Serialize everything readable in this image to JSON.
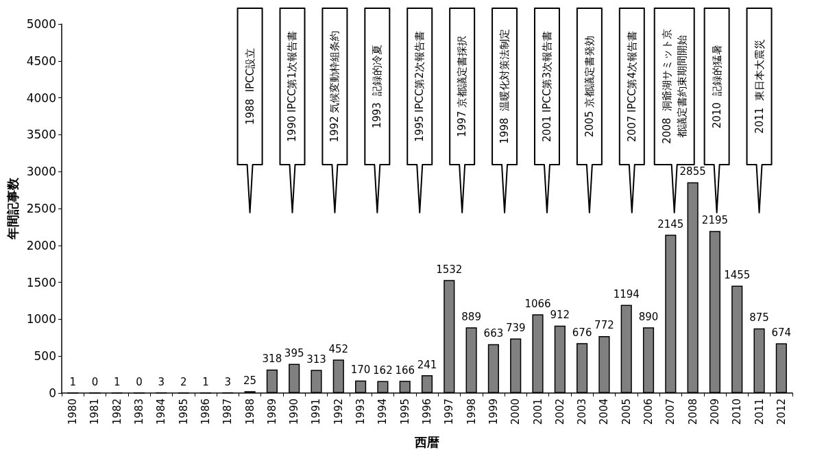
{
  "chart_data": {
    "type": "bar",
    "xlabel": "西暦",
    "ylabel": "年間記事数",
    "categories": [
      "1980",
      "1981",
      "1982",
      "1983",
      "1984",
      "1985",
      "1986",
      "1987",
      "1988",
      "1989",
      "1990",
      "1991",
      "1992",
      "1993",
      "1994",
      "1995",
      "1996",
      "1997",
      "1998",
      "1999",
      "2000",
      "2001",
      "2002",
      "2003",
      "2004",
      "2005",
      "2006",
      "2007",
      "2008",
      "2009",
      "2010",
      "2011",
      "2012"
    ],
    "values": [
      1,
      0,
      1,
      0,
      3,
      2,
      1,
      3,
      25,
      318,
      395,
      313,
      452,
      170,
      162,
      166,
      241,
      1532,
      889,
      663,
      739,
      1066,
      912,
      676,
      772,
      1194,
      890,
      2145,
      2855,
      2195,
      1455,
      875,
      674
    ],
    "color": "#808080",
    "ylim": [
      0,
      5000
    ],
    "yticks": [
      0,
      500,
      1000,
      1500,
      2000,
      2500,
      3000,
      3500,
      4000,
      4500,
      5000
    ],
    "grid": false,
    "data_labels": true,
    "annotations": [
      "1988  IPCC設立",
      "1990 IPCC第1次報告書",
      "1992 気候変動枠組条約",
      "1993  記録的冷夏",
      "1995 IPCC第2次報告書",
      "1997 京都議定書採択",
      "1998  温暖化対策法制定",
      "2001 IPCC第3次報告書",
      "2005 京都議定書発効",
      "2007 IPCC第4次報告書",
      "2008  洞爺湖サミット京都議定書約束期間開始",
      "2010  記録的猛暑",
      "2011  東日本大震災"
    ]
  }
}
